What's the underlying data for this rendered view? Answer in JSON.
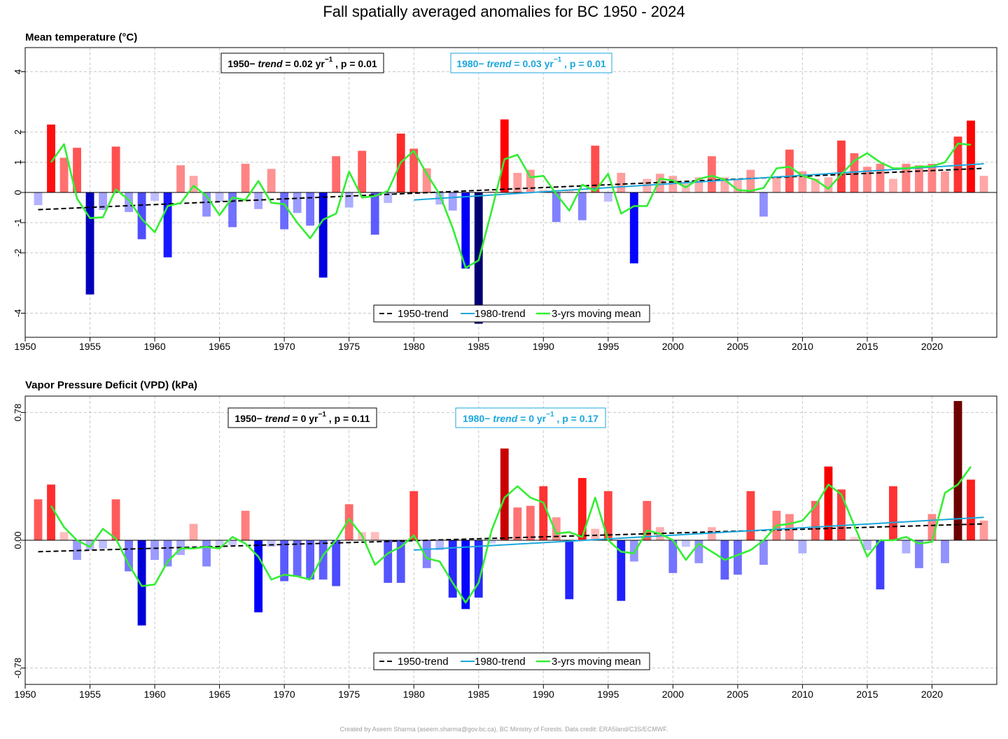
{
  "title": "Fall spatially averaged anomalies for BC 1950 - 2024",
  "credit": "Created by Aseem Sharma (aseem.sharma@gov.bc.ca), BC Ministry of Forests. Data credit: ERA5land/C3S/ECMWF.",
  "colors": {
    "trend_1950": "#000000",
    "trend_1980": "#1aa7dc",
    "moving_mean": "#33ee33",
    "positive_bars": "red shades (darker = larger)",
    "negative_bars": "blue shades (darker = larger)"
  },
  "chart_data": [
    {
      "type": "bar",
      "panel_title": "Mean temperature  (°C)",
      "xlim": [
        1950,
        2025
      ],
      "ylim": [
        -4.8,
        4.8
      ],
      "x_ticks": [
        1950,
        1955,
        1960,
        1965,
        1970,
        1975,
        1980,
        1985,
        1990,
        1995,
        2000,
        2005,
        2010,
        2015,
        2020
      ],
      "y_ticks": [
        4,
        2,
        1,
        0,
        -1,
        -2,
        -4
      ],
      "y_tick_labels": [
        "4",
        "2",
        "1",
        "0",
        "-1",
        "-2",
        "-4"
      ],
      "grid": true,
      "color_scale_max": 4.4,
      "years": [
        1951,
        1952,
        1953,
        1954,
        1955,
        1956,
        1957,
        1958,
        1959,
        1960,
        1961,
        1962,
        1963,
        1964,
        1965,
        1966,
        1967,
        1968,
        1969,
        1970,
        1971,
        1972,
        1973,
        1974,
        1975,
        1976,
        1977,
        1978,
        1979,
        1980,
        1981,
        1982,
        1983,
        1984,
        1985,
        1986,
        1987,
        1988,
        1989,
        1990,
        1991,
        1992,
        1993,
        1994,
        1995,
        1996,
        1997,
        1998,
        1999,
        2000,
        2001,
        2002,
        2003,
        2004,
        2005,
        2006,
        2007,
        2008,
        2009,
        2010,
        2011,
        2012,
        2013,
        2014,
        2015,
        2016,
        2017,
        2018,
        2019,
        2020,
        2021,
        2022,
        2023,
        2024
      ],
      "values": [
        -0.42,
        2.25,
        1.15,
        1.48,
        -3.38,
        -0.58,
        1.52,
        -0.65,
        -1.55,
        -0.28,
        -2.15,
        0.9,
        0.55,
        -0.8,
        -0.3,
        -1.15,
        0.95,
        -0.55,
        0.78,
        -1.22,
        -0.68,
        -1.1,
        -2.82,
        1.2,
        -0.5,
        1.38,
        -1.4,
        -0.35,
        1.95,
        1.45,
        0.8,
        -0.4,
        -0.6,
        -2.52,
        -4.35,
        0.05,
        2.42,
        0.65,
        0.75,
        0.1,
        -0.98,
        0.1,
        -0.92,
        1.55,
        -0.3,
        0.65,
        -2.35,
        0.45,
        0.62,
        0.55,
        0.3,
        0.5,
        1.2,
        0.5,
        0.45,
        0.75,
        -0.8,
        0.5,
        1.42,
        0.7,
        0.45,
        0.5,
        1.72,
        1.3,
        0.85,
        0.95,
        0.45,
        0.95,
        0.9,
        0.95,
        0.7,
        1.85,
        2.38,
        0.55
      ],
      "moving_mean": {
        "x": [
          1952,
          1953,
          1954,
          1955,
          1956,
          1957,
          1958,
          1959,
          1960,
          1961,
          1962,
          1963,
          1964,
          1965,
          1966,
          1967,
          1968,
          1969,
          1970,
          1971,
          1972,
          1973,
          1974,
          1975,
          1976,
          1977,
          1978,
          1979,
          1980,
          1981,
          1982,
          1983,
          1984,
          1985,
          1986,
          1987,
          1988,
          1989,
          1990,
          1991,
          1992,
          1993,
          1994,
          1995,
          1996,
          1997,
          1998,
          1999,
          2000,
          2001,
          2002,
          2003,
          2004,
          2005,
          2006,
          2007,
          2008,
          2009,
          2010,
          2011,
          2012,
          2013,
          2014,
          2015,
          2016,
          2017,
          2018,
          2019,
          2020,
          2021,
          2022,
          2023
        ],
        "y": [
          1.0,
          1.6,
          -0.2,
          -0.85,
          -0.82,
          0.1,
          -0.25,
          -0.88,
          -1.32,
          -0.45,
          -0.35,
          0.22,
          -0.12,
          -0.75,
          -0.17,
          -0.25,
          0.38,
          -0.34,
          -0.39,
          -1.0,
          -1.52,
          -0.9,
          -0.7,
          0.69,
          -0.17,
          -0.12,
          0.05,
          1.0,
          1.38,
          0.62,
          -0.07,
          -1.18,
          -2.5,
          -2.25,
          -0.62,
          1.1,
          1.25,
          0.5,
          0.55,
          -0.06,
          -0.6,
          0.26,
          0.05,
          0.62,
          -0.7,
          -0.45,
          -0.45,
          0.45,
          0.4,
          0.17,
          0.45,
          0.55,
          0.42,
          0.08,
          0.05,
          0.15,
          0.8,
          0.85,
          0.55,
          0.42,
          0.12,
          0.6,
          1.05,
          1.3,
          1.0,
          0.8,
          0.8,
          0.85,
          0.87,
          1.0,
          1.62,
          1.58
        ]
      },
      "trend_1950": {
        "x": [
          1951,
          2024
        ],
        "y": [
          -0.57,
          0.8
        ]
      },
      "trend_1980": {
        "x": [
          1980,
          2024
        ],
        "y": [
          -0.25,
          0.95
        ]
      },
      "annotation_1950": {
        "period": "1950−",
        "trend_label": "trend",
        "value": "= 0.02 yr",
        "exponent": "−1",
        "p_text": ", p = 0.01"
      },
      "annotation_1980": {
        "period": "1980−",
        "trend_label": "trend",
        "value": "= 0.03 yr",
        "exponent": "−1",
        "p_text": ", p = 0.01"
      },
      "legend": [
        "1950-trend",
        "1980-trend",
        "3-yrs moving mean"
      ],
      "legend_position": "bottom-center"
    },
    {
      "type": "bar",
      "panel_title": "Vapor Pressure Deficit (VPD)  (kPa)",
      "xlim": [
        1950,
        2025
      ],
      "ylim": [
        -0.88,
        0.88
      ],
      "x_ticks": [
        1950,
        1955,
        1960,
        1965,
        1970,
        1975,
        1980,
        1985,
        1990,
        1995,
        2000,
        2005,
        2010,
        2015,
        2020
      ],
      "y_ticks": [
        0.78,
        0,
        -0.78
      ],
      "y_tick_labels": [
        "0.78",
        "0.00",
        "-0.78"
      ],
      "grid": true,
      "color_scale_max": 0.78,
      "years": [
        1951,
        1952,
        1953,
        1954,
        1955,
        1956,
        1957,
        1958,
        1959,
        1960,
        1961,
        1962,
        1963,
        1964,
        1965,
        1966,
        1967,
        1968,
        1969,
        1970,
        1971,
        1972,
        1973,
        1974,
        1975,
        1976,
        1977,
        1978,
        1979,
        1980,
        1981,
        1982,
        1983,
        1984,
        1985,
        1986,
        1987,
        1988,
        1989,
        1990,
        1991,
        1992,
        1993,
        1994,
        1995,
        1996,
        1997,
        1998,
        1999,
        2000,
        2001,
        2002,
        2003,
        2004,
        2005,
        2006,
        2007,
        2008,
        2009,
        2010,
        2011,
        2012,
        2013,
        2014,
        2015,
        2016,
        2017,
        2018,
        2019,
        2020,
        2021,
        2022,
        2023,
        2024
      ],
      "values": [
        0.25,
        0.34,
        0.05,
        -0.12,
        -0.06,
        -0.05,
        0.25,
        -0.19,
        -0.52,
        -0.12,
        -0.16,
        -0.09,
        0.1,
        -0.16,
        -0.03,
        -0.03,
        0.18,
        -0.44,
        -0.04,
        -0.25,
        -0.22,
        -0.24,
        -0.24,
        -0.28,
        0.22,
        0.05,
        0.05,
        -0.26,
        -0.26,
        0.3,
        -0.17,
        -0.06,
        -0.35,
        -0.42,
        -0.35,
        -0.02,
        0.56,
        0.2,
        0.21,
        0.33,
        0.14,
        -0.36,
        0.38,
        0.07,
        0.3,
        -0.37,
        -0.13,
        0.24,
        0.08,
        -0.2,
        -0.04,
        -0.14,
        0.08,
        -0.24,
        -0.21,
        0.3,
        -0.15,
        0.18,
        0.16,
        -0.08,
        0.24,
        0.45,
        0.31,
        0.02,
        -0.06,
        -0.3,
        0.33,
        -0.08,
        -0.17,
        0.16,
        -0.14,
        0.85,
        0.37,
        0.12
      ],
      "moving_mean": {
        "x": [
          1952,
          1953,
          1954,
          1955,
          1956,
          1957,
          1958,
          1959,
          1960,
          1961,
          1962,
          1963,
          1964,
          1965,
          1966,
          1967,
          1968,
          1969,
          1970,
          1971,
          1972,
          1973,
          1974,
          1975,
          1976,
          1977,
          1978,
          1979,
          1980,
          1981,
          1982,
          1983,
          1984,
          1985,
          1986,
          1987,
          1988,
          1989,
          1990,
          1991,
          1992,
          1993,
          1994,
          1995,
          1996,
          1997,
          1998,
          1999,
          2000,
          2001,
          2002,
          2003,
          2004,
          2005,
          2006,
          2007,
          2008,
          2009,
          2010,
          2011,
          2012,
          2013,
          2014,
          2015,
          2016,
          2017,
          2018,
          2019,
          2020,
          2021,
          2022,
          2023
        ],
        "y": [
          0.21,
          0.08,
          0.0,
          -0.04,
          0.07,
          0.01,
          -0.15,
          -0.28,
          -0.27,
          -0.13,
          -0.05,
          -0.05,
          -0.04,
          -0.05,
          0.02,
          -0.02,
          -0.1,
          -0.24,
          -0.21,
          -0.22,
          -0.24,
          -0.09,
          0.0,
          0.13,
          0.03,
          -0.15,
          -0.08,
          -0.04,
          0.03,
          -0.11,
          -0.13,
          -0.26,
          -0.38,
          -0.26,
          0.06,
          0.26,
          0.33,
          0.26,
          0.23,
          0.04,
          0.05,
          0.02,
          0.26,
          0.0,
          -0.07,
          -0.08,
          0.06,
          0.04,
          0.0,
          -0.12,
          -0.02,
          -0.07,
          -0.12,
          -0.09,
          -0.06,
          0.0,
          0.09,
          0.1,
          0.12,
          0.21,
          0.34,
          0.28,
          0.09,
          -0.1,
          0.0,
          0.0,
          0.02,
          -0.02,
          -0.01,
          0.29,
          0.34,
          0.45
        ]
      },
      "trend_1950": {
        "x": [
          1951,
          2024
        ],
        "y": [
          -0.07,
          0.1
        ]
      },
      "trend_1980": {
        "x": [
          1980,
          2024
        ],
        "y": [
          -0.06,
          0.14
        ]
      },
      "annotation_1950": {
        "period": "1950−",
        "trend_label": "trend",
        "value": "= 0 yr",
        "exponent": "−1",
        "p_text": ", p = 0.11"
      },
      "annotation_1980": {
        "period": "1980−",
        "trend_label": "trend",
        "value": "= 0 yr",
        "exponent": "−1",
        "p_text": ", p = 0.17"
      },
      "legend": [
        "1950-trend",
        "1980-trend",
        "3-yrs moving mean"
      ],
      "legend_position": "bottom-center"
    }
  ]
}
